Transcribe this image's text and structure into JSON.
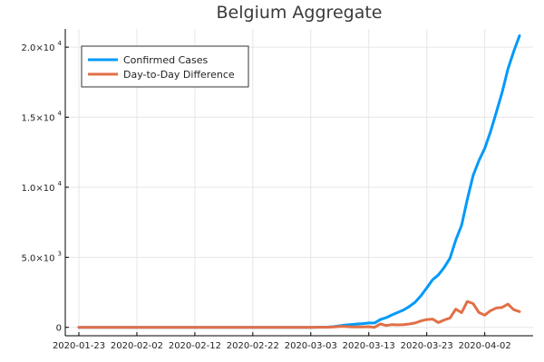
{
  "chart_data": {
    "type": "line",
    "title": "Belgium Aggregate",
    "xlabel": "",
    "ylabel": "",
    "x_start": "2020-01-23",
    "x_tick_labels": [
      "2020-01-23",
      "2020-02-02",
      "2020-02-12",
      "2020-02-22",
      "2020-03-03",
      "2020-03-13",
      "2020-03-23",
      "2020-04-02"
    ],
    "y_ticks": [
      {
        "value": 0,
        "mantissa": "0",
        "exponent": ""
      },
      {
        "value": 5000,
        "mantissa": "5.0×10",
        "exponent": "3"
      },
      {
        "value": 10000,
        "mantissa": "1.0×10",
        "exponent": "4"
      },
      {
        "value": 15000,
        "mantissa": "1.5×10",
        "exponent": "4"
      },
      {
        "value": 20000,
        "mantissa": "2.0×10",
        "exponent": "4"
      }
    ],
    "ylim": [
      -600,
      21300
    ],
    "grid": true,
    "legend_position": "top-left",
    "series": [
      {
        "name": "Confirmed Cases",
        "color": "#009af9",
        "values": [
          0,
          0,
          0,
          0,
          0,
          0,
          0,
          0,
          0,
          0,
          1,
          1,
          1,
          1,
          1,
          1,
          1,
          1,
          1,
          1,
          1,
          1,
          1,
          1,
          1,
          1,
          1,
          1,
          1,
          1,
          1,
          1,
          1,
          1,
          1,
          1,
          1,
          1,
          1,
          1,
          2,
          8,
          13,
          23,
          50,
          109,
          169,
          200,
          239,
          267,
          314,
          314,
          559,
          689,
          886,
          1058,
          1243,
          1486,
          1795,
          2257,
          2815,
          3401,
          3743,
          4269,
          4937,
          6235,
          7284,
          9134,
          10836,
          11899,
          12775,
          13964,
          15348,
          16770,
          18431,
          19691,
          20814
        ]
      },
      {
        "name": "Day-to-Day Difference",
        "color": "#e26f46",
        "values": [
          0,
          0,
          0,
          0,
          0,
          0,
          0,
          0,
          0,
          0,
          1,
          0,
          0,
          0,
          0,
          0,
          0,
          0,
          0,
          0,
          0,
          0,
          0,
          0,
          0,
          0,
          0,
          0,
          0,
          0,
          0,
          0,
          0,
          0,
          0,
          0,
          0,
          0,
          0,
          0,
          1,
          6,
          5,
          10,
          27,
          59,
          60,
          31,
          39,
          28,
          47,
          0,
          245,
          130,
          197,
          172,
          185,
          243,
          309,
          462,
          558,
          586,
          342,
          526,
          668,
          1298,
          1049,
          1850,
          1702,
          1063,
          876,
          1189,
          1384,
          1422,
          1661,
          1260,
          1123
        ]
      }
    ]
  }
}
